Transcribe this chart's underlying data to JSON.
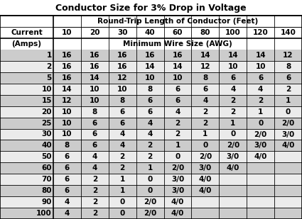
{
  "title": "Conductor Size for 3% Drop in Voltage",
  "col_header_line1": "Round-Trip Length of Conductor (Feet)",
  "col_header_line2": "Minimum Wire Size (AWG)",
  "row_header_line1": "Current",
  "row_header_line2": "(Amps)",
  "columns": [
    "10",
    "20",
    "30",
    "40",
    "60",
    "80",
    "100",
    "120",
    "140"
  ],
  "rows": [
    {
      "amp": "1",
      "vals": [
        "16",
        "16",
        "16",
        "16",
        "16",
        "14",
        "14",
        "14",
        "12"
      ]
    },
    {
      "amp": "2",
      "vals": [
        "16",
        "16",
        "16",
        "14",
        "14",
        "12",
        "10",
        "10",
        "8"
      ]
    },
    {
      "amp": "5",
      "vals": [
        "16",
        "14",
        "12",
        "10",
        "10",
        "8",
        "6",
        "6",
        "6"
      ]
    },
    {
      "amp": "10",
      "vals": [
        "14",
        "10",
        "10",
        "8",
        "6",
        "6",
        "4",
        "4",
        "2"
      ]
    },
    {
      "amp": "15",
      "vals": [
        "12",
        "10",
        "8",
        "6",
        "6",
        "4",
        "2",
        "2",
        "1"
      ]
    },
    {
      "amp": "20",
      "vals": [
        "10",
        "8",
        "6",
        "6",
        "4",
        "2",
        "2",
        "1",
        "0"
      ]
    },
    {
      "amp": "25",
      "vals": [
        "10",
        "6",
        "6",
        "4",
        "2",
        "2",
        "1",
        "0",
        "2/0"
      ]
    },
    {
      "amp": "30",
      "vals": [
        "10",
        "6",
        "4",
        "4",
        "2",
        "1",
        "0",
        "2/0",
        "3/0"
      ]
    },
    {
      "amp": "40",
      "vals": [
        "8",
        "6",
        "4",
        "2",
        "1",
        "0",
        "2/0",
        "3/0",
        "4/0"
      ]
    },
    {
      "amp": "50",
      "vals": [
        "6",
        "4",
        "2",
        "2",
        "0",
        "2/0",
        "3/0",
        "4/0",
        ""
      ]
    },
    {
      "amp": "60",
      "vals": [
        "6",
        "4",
        "2",
        "1",
        "2/0",
        "3/0",
        "4/0",
        "",
        ""
      ]
    },
    {
      "amp": "70",
      "vals": [
        "6",
        "2",
        "1",
        "0",
        "3/0",
        "4/0",
        "",
        "",
        ""
      ]
    },
    {
      "amp": "80",
      "vals": [
        "6",
        "2",
        "1",
        "0",
        "3/0",
        "4/0",
        "",
        "",
        ""
      ]
    },
    {
      "amp": "90",
      "vals": [
        "4",
        "2",
        "0",
        "2/0",
        "4/0",
        "",
        "",
        "",
        ""
      ]
    },
    {
      "amp": "100",
      "vals": [
        "4",
        "2",
        "0",
        "2/0",
        "4/0",
        "",
        "",
        "",
        ""
      ]
    }
  ],
  "bg_color": "#ffffff",
  "odd_row_color": "#cccccc",
  "even_row_color": "#ebebeb",
  "title_fontsize": 9,
  "header_fontsize": 7.5,
  "data_fontsize": 7.5
}
